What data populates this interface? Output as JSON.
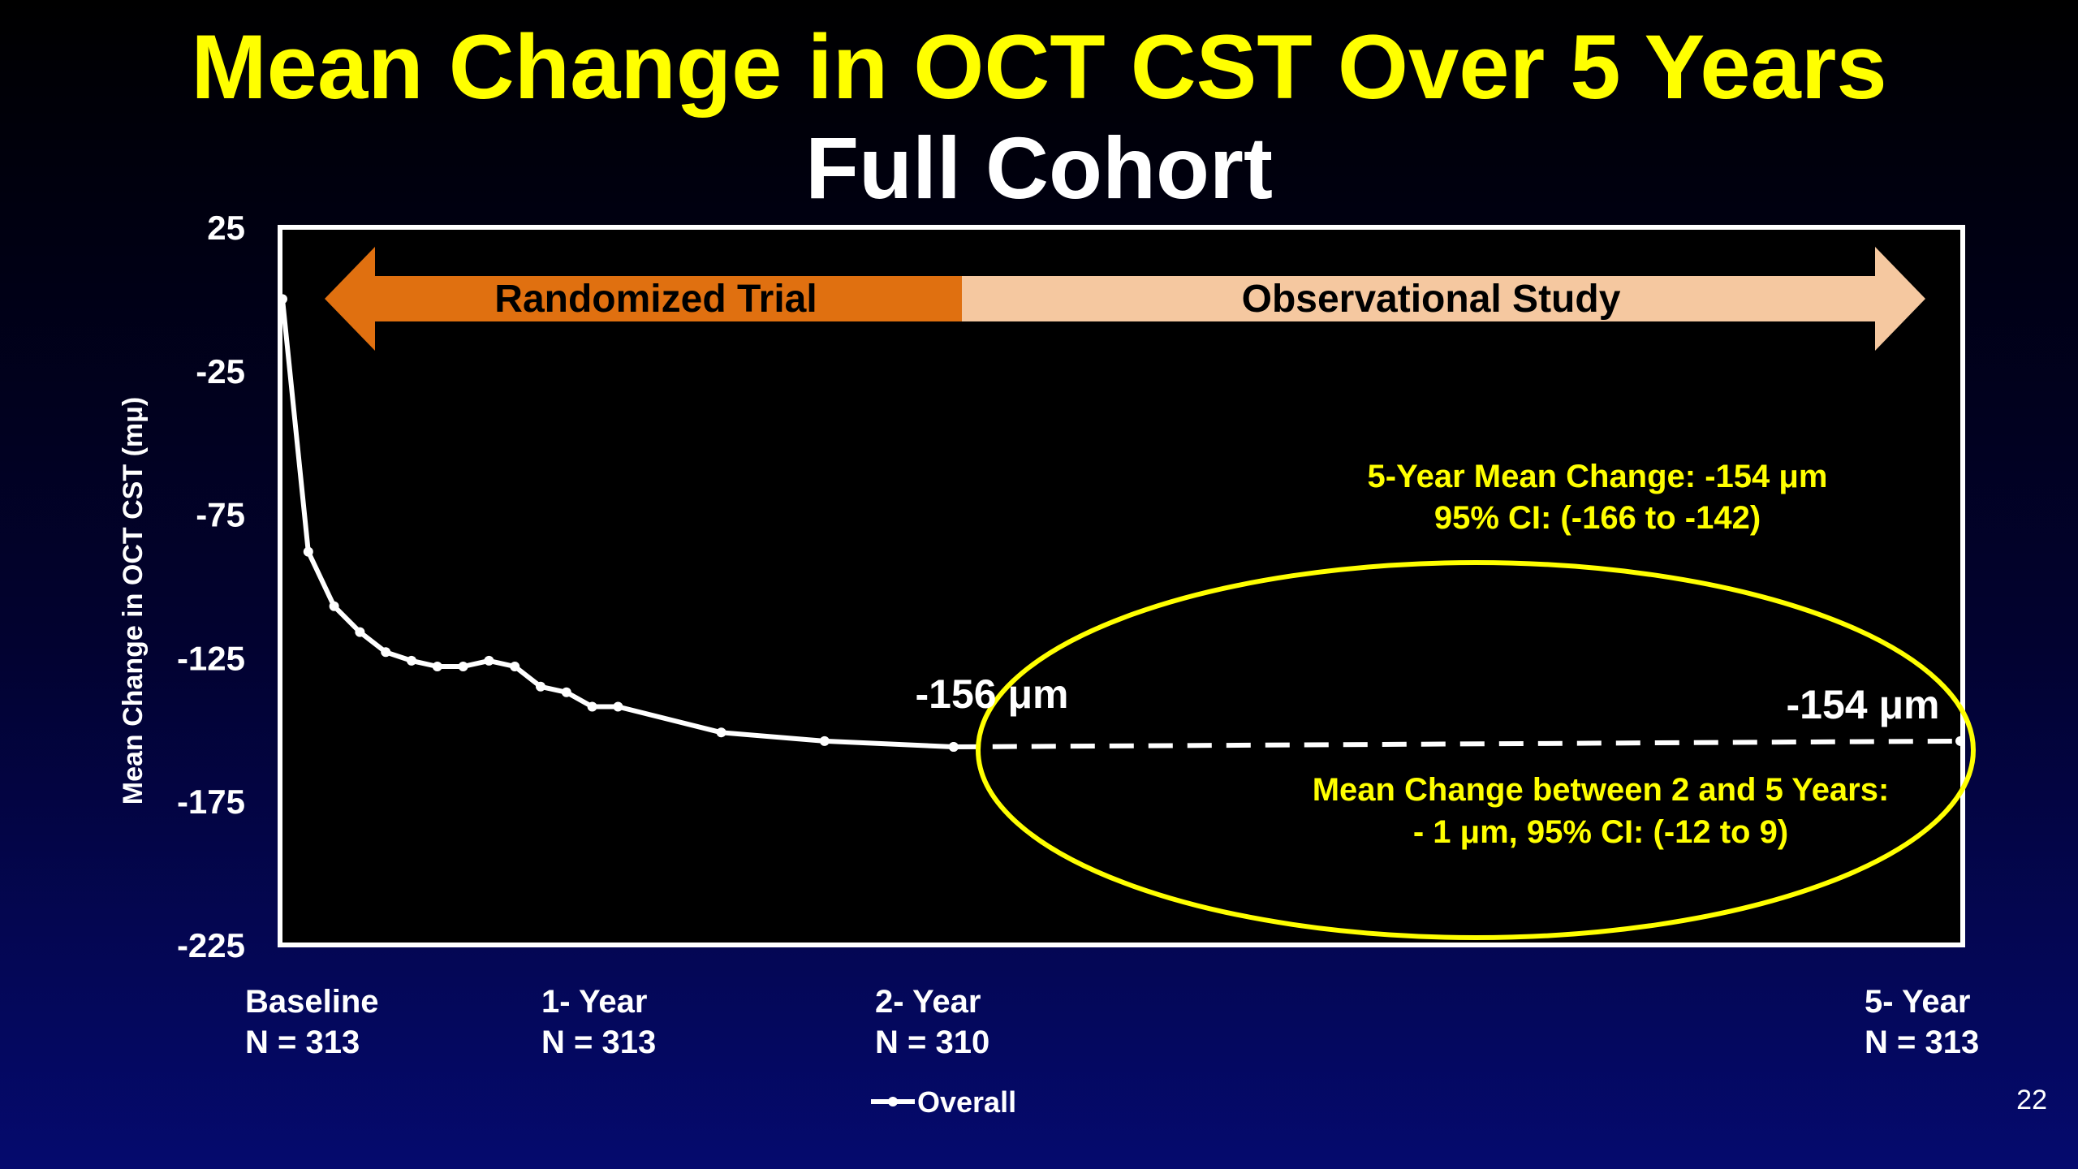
{
  "slide": {
    "title": "Mean Change in OCT CST Over 5 Years",
    "subtitle": "Full Cohort",
    "page_number": "22"
  },
  "colors": {
    "title": "#ffff00",
    "subtitle": "#ffffff",
    "plot_background": "#000000",
    "line": "#ffffff",
    "randomized_arrow": "#e07010",
    "observational_arrow": "#f5c8a0",
    "annotation": "#ffff00"
  },
  "chart_data": {
    "type": "line",
    "ylabel": "Mean Change in OCT CST  (mμ)",
    "ylim": [
      -225,
      25
    ],
    "yticks": [
      25,
      -25,
      -75,
      -125,
      -175,
      -225
    ],
    "x_range": [
      0,
      260
    ],
    "x_unit": "weeks",
    "x_tick_labels": [
      {
        "x": 0,
        "line1": "Baseline",
        "line2": "N = 313"
      },
      {
        "x": 52,
        "line1": "1- Year",
        "line2": "N = 313"
      },
      {
        "x": 104,
        "line1": "2- Year",
        "line2": "N = 310"
      },
      {
        "x": 260,
        "line1": "5- Year",
        "line2": "N = 313"
      }
    ],
    "grid": false,
    "legend": {
      "position": "bottom-center",
      "entries": [
        "Overall"
      ]
    },
    "series": [
      {
        "name": "Overall",
        "style": "solid",
        "x": [
          0,
          4,
          8,
          12,
          16,
          20,
          24,
          28,
          32,
          36,
          40,
          44,
          48,
          52,
          68,
          84,
          104
        ],
        "y": [
          0,
          -88,
          -107,
          -116,
          -123,
          -126,
          -128,
          -128,
          -126,
          -128,
          -135,
          -137,
          -142,
          -142,
          -151,
          -154,
          -156
        ]
      },
      {
        "name": "",
        "style": "dashed",
        "x": [
          104,
          260
        ],
        "y": [
          -156,
          -154
        ]
      }
    ],
    "phases": [
      {
        "label": "Randomized Trial",
        "x_start": 0,
        "x_end": 104
      },
      {
        "label": "Observational Study",
        "x_start": 104,
        "x_end": 260
      }
    ],
    "annotations": {
      "two_year_value": "-156 μm",
      "five_year_value": "-154 μm",
      "five_year_summary_line1": "5-Year Mean Change: -154 μm",
      "five_year_summary_line2": "95% CI: (-166 to -142)",
      "between_line1": "Mean Change between 2 and 5 Years:",
      "between_line2": "- 1 μm, 95% CI: (-12 to 9)"
    }
  }
}
